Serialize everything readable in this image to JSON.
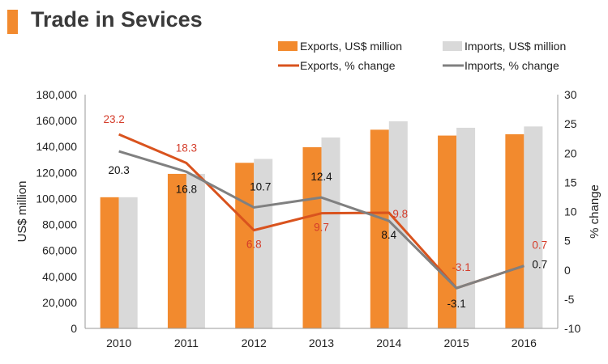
{
  "title": "Trade in Sevices",
  "chart_data": {
    "type": "bar",
    "categories": [
      "2010",
      "2011",
      "2012",
      "2013",
      "2014",
      "2015",
      "2016"
    ],
    "series": [
      {
        "name": "Exports, US$ million",
        "kind": "bar",
        "axis": "left",
        "color": "#f28a2e",
        "values": [
          101000,
          119000,
          127500,
          139500,
          153000,
          148500,
          149500
        ]
      },
      {
        "name": "Imports, US$ million",
        "kind": "bar",
        "axis": "left",
        "color": "#d9d9d9",
        "values": [
          101000,
          119000,
          130500,
          147000,
          159500,
          154500,
          155500
        ]
      },
      {
        "name": "Exports, % change",
        "kind": "line",
        "axis": "right",
        "color": "#d9531e",
        "label_color": "#d43c2a",
        "values": [
          23.2,
          18.3,
          6.8,
          9.7,
          9.8,
          -3.1,
          0.7
        ],
        "labels": [
          "23.2",
          "18.3",
          "6.8",
          "9.7",
          "9.8",
          "-3.1",
          "0.7"
        ]
      },
      {
        "name": "Imports, % change",
        "kind": "line",
        "axis": "right",
        "color": "#808080",
        "label_color": "#111111",
        "values": [
          20.3,
          16.8,
          10.7,
          12.4,
          8.4,
          -3.1,
          0.7
        ],
        "labels": [
          "20.3",
          "16.8",
          "10.7",
          "12.4",
          "8.4",
          "-3.1",
          "0.7"
        ]
      }
    ],
    "ylabel": "US$ million",
    "y2label": "% change",
    "ylim": [
      0,
      180000
    ],
    "y2lim": [
      -10,
      30
    ],
    "yticks": [
      "0",
      "20,000",
      "40,000",
      "60,000",
      "80,000",
      "100,000",
      "120,000",
      "140,000",
      "160,000",
      "180,000"
    ],
    "y2ticks": [
      "-10",
      "-5",
      "0",
      "5",
      "10",
      "15",
      "20",
      "25",
      "30"
    ],
    "legend": [
      "Exports, US$ million",
      "Imports, US$ million",
      "Exports, % change",
      "Imports, % change"
    ],
    "legend_position": "top-right",
    "grid": false
  }
}
